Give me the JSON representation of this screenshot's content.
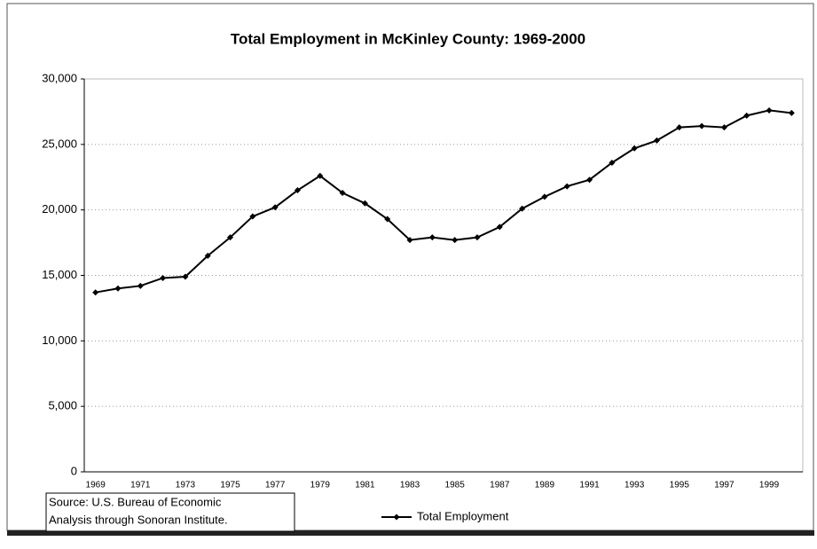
{
  "chart_data": {
    "type": "line",
    "title": "Total Employment in McKinley County: 1969-2000",
    "categories": [
      "1969",
      null,
      "1971",
      null,
      "1973",
      null,
      "1975",
      null,
      "1977",
      null,
      "1979",
      null,
      "1981",
      null,
      "1983",
      null,
      "1985",
      null,
      "1987",
      null,
      "1989",
      null,
      "1991",
      null,
      "1993",
      null,
      "1995",
      null,
      "1997",
      null,
      "1999",
      null
    ],
    "series": [
      {
        "name": "Total Employment",
        "color": "#000000",
        "values": [
          13700,
          14000,
          14200,
          14800,
          14900,
          16500,
          17900,
          19500,
          20200,
          21500,
          22600,
          21300,
          20500,
          19300,
          17700,
          17900,
          17700,
          17900,
          18700,
          20100,
          21000,
          21800,
          22300,
          23600,
          24700,
          25300,
          26300,
          26400,
          26300,
          27200,
          27600,
          27400
        ]
      }
    ],
    "ylim": [
      0,
      30000
    ],
    "yticks": [
      0,
      {
        "value": 5000,
        "label": "5,000"
      },
      {
        "value": 10000,
        "label": "10,000"
      },
      {
        "value": 15000,
        "label": "15,000"
      },
      {
        "value": 20000,
        "label": "20,000"
      },
      {
        "value": 25000,
        "label": "25,000"
      },
      {
        "value": 30000,
        "label": "30,000"
      }
    ],
    "grid": true,
    "source": [
      "Source: U.S. Bureau of Economic",
      "Analysis through Sonoran Institute."
    ]
  }
}
